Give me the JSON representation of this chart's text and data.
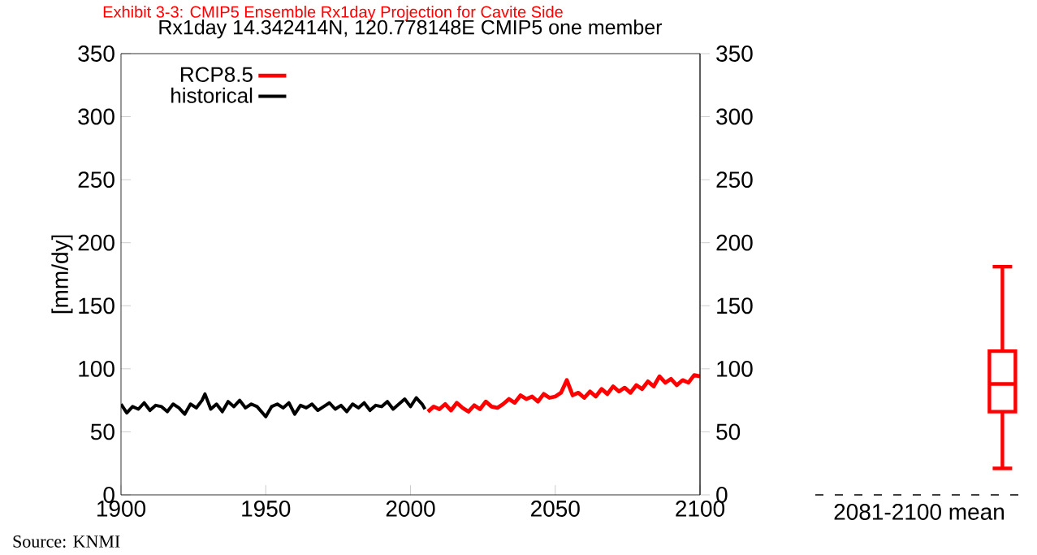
{
  "chart_data": [
    {
      "type": "line",
      "title": "Rx1day 14.342414N, 120.778148E CMIP5 one member",
      "ylabel": "[mm/dy]",
      "annotations": [
        "Exhibit 3-3: CMIP5 Ensemble Rx1day Projection for Cavite Side",
        "Source: KNMI"
      ],
      "xlim": [
        1900,
        2100
      ],
      "xticks": [
        1900,
        1950,
        2000,
        2050,
        2100
      ],
      "ylim": [
        0,
        350
      ],
      "yticks": [
        0,
        50,
        100,
        150,
        200,
        250,
        300,
        350
      ],
      "y2lim": [
        0,
        350
      ],
      "y2ticks": [
        0,
        50,
        100,
        150,
        200,
        250,
        300,
        350
      ],
      "legend": "top left",
      "series": [
        {
          "name": "RCP8.5",
          "color": "#ff0000",
          "x": [
            2006,
            2008,
            2010,
            2012,
            2014,
            2016,
            2018,
            2020,
            2022,
            2024,
            2026,
            2028,
            2030,
            2032,
            2034,
            2036,
            2038,
            2040,
            2042,
            2044,
            2046,
            2048,
            2050,
            2052,
            2054,
            2056,
            2058,
            2060,
            2062,
            2064,
            2066,
            2068,
            2070,
            2072,
            2074,
            2076,
            2078,
            2080,
            2082,
            2084,
            2086,
            2088,
            2090,
            2092,
            2094,
            2096,
            2098,
            2100
          ],
          "values": [
            66,
            70,
            68,
            72,
            67,
            73,
            69,
            66,
            71,
            68,
            74,
            70,
            69,
            72,
            76,
            73,
            79,
            76,
            78,
            74,
            80,
            77,
            78,
            81,
            91,
            79,
            81,
            77,
            82,
            78,
            84,
            80,
            86,
            82,
            85,
            81,
            87,
            84,
            90,
            86,
            94,
            89,
            92,
            87,
            91,
            89,
            95,
            94
          ]
        },
        {
          "name": "historical",
          "color": "#000000",
          "x": [
            1900,
            1902,
            1904,
            1906,
            1908,
            1910,
            1912,
            1914,
            1916,
            1918,
            1920,
            1922,
            1924,
            1926,
            1928,
            1929,
            1931,
            1933,
            1935,
            1937,
            1939,
            1941,
            1943,
            1945,
            1947,
            1950,
            1952,
            1954,
            1956,
            1958,
            1960,
            1962,
            1964,
            1966,
            1968,
            1970,
            1972,
            1974,
            1976,
            1978,
            1980,
            1982,
            1984,
            1986,
            1988,
            1990,
            1992,
            1994,
            1996,
            1998,
            2000,
            2002,
            2004,
            2005
          ],
          "values": [
            72,
            65,
            70,
            68,
            73,
            67,
            71,
            70,
            66,
            72,
            69,
            64,
            72,
            69,
            75,
            80,
            68,
            72,
            66,
            74,
            70,
            75,
            69,
            72,
            70,
            62,
            70,
            72,
            69,
            73,
            64,
            71,
            69,
            72,
            67,
            70,
            73,
            68,
            71,
            66,
            72,
            69,
            73,
            67,
            71,
            70,
            74,
            68,
            72,
            76,
            70,
            77,
            72,
            68
          ]
        }
      ]
    },
    {
      "type": "box",
      "xlabel": "2081-2100 mean",
      "categories": [
        null
      ],
      "ylim": [
        0,
        350
      ],
      "tick_labels": false,
      "boxes": [
        {
          "low": 21,
          "q1": 66,
          "median": 88,
          "q3": 114,
          "high": 181
        }
      ],
      "color": "#ff0000",
      "ref_lines": [
        {
          "axis": "y",
          "value": 0,
          "line_style": "dashed",
          "color": "#000000"
        }
      ]
    }
  ]
}
